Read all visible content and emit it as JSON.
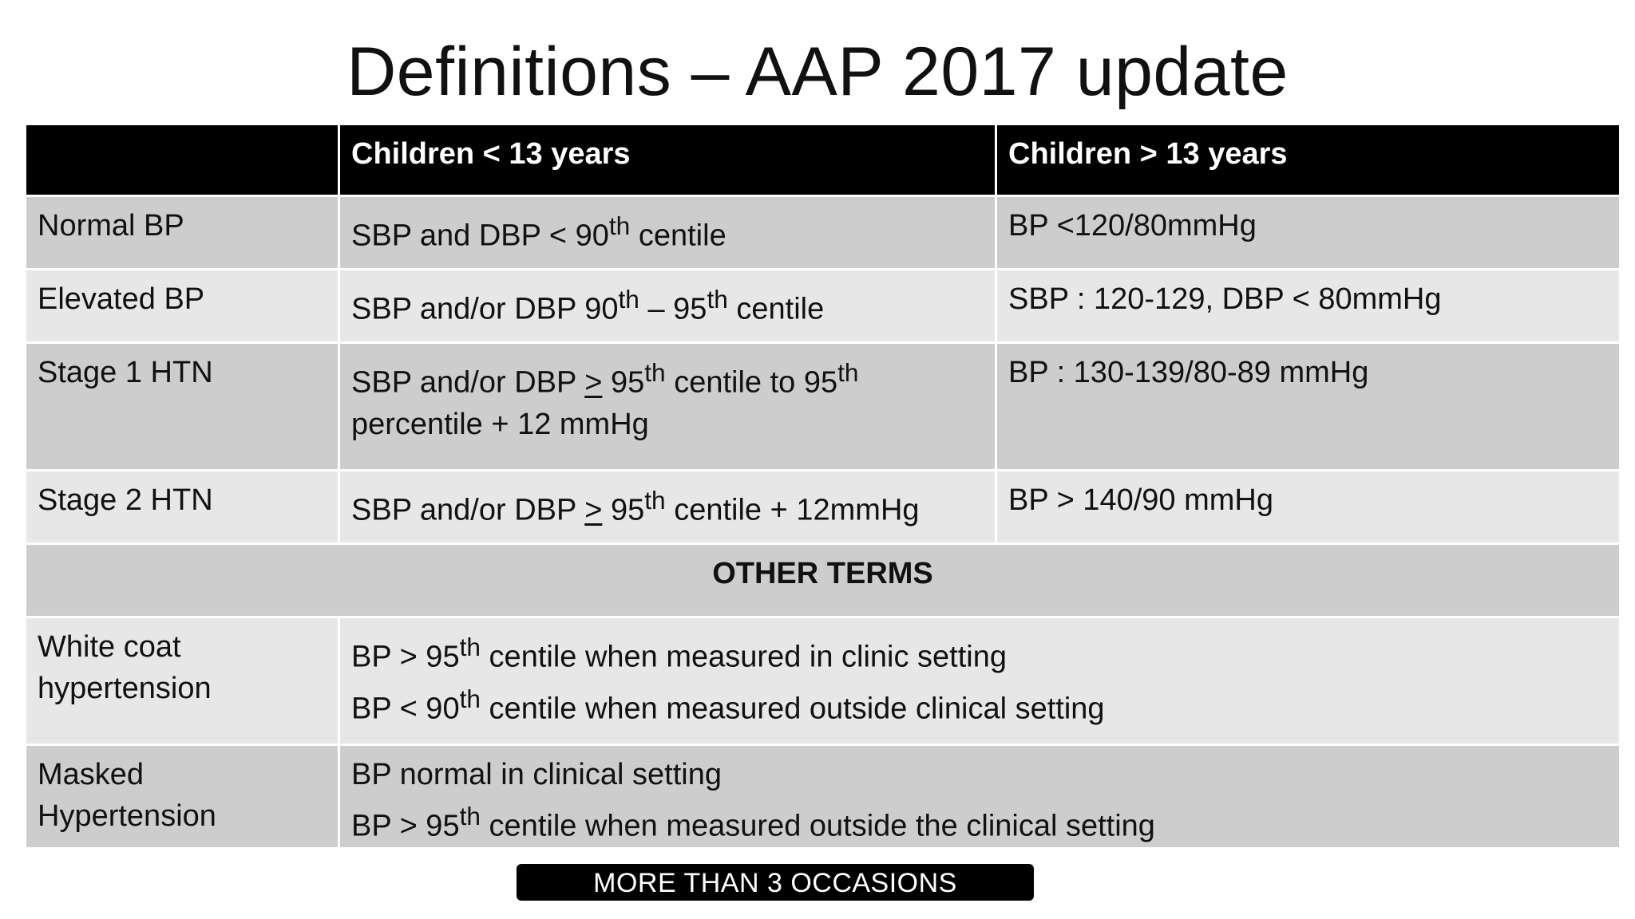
{
  "title": "Definitions – AAP 2017 update",
  "header": {
    "blank": "",
    "col1": "Children < 13 years",
    "col2": "Children > 13 years"
  },
  "rows": [
    {
      "label": "Normal BP",
      "col1": {
        "a": "SBP and DBP < 90",
        "sup1": "th",
        "b": " centile"
      },
      "col2": "BP <120/80mmHg"
    },
    {
      "label": "Elevated BP",
      "col1": {
        "a": "SBP and/or DBP 90",
        "sup1": "th",
        "b": "  – 95",
        "sup2": "th",
        "c": " centile"
      },
      "col2": "SBP : 120-129, DBP < 80mmHg"
    },
    {
      "label": "Stage 1 HTN",
      "col1": {
        "a": "SBP and/or DBP  ",
        "ge": ">",
        "b": "  95",
        "sup1": "th",
        "c": " centile to 95",
        "sup2": "th",
        "d": "percentile + 12 mmHg"
      },
      "col2": "BP : 130-139/80-89 mmHg"
    },
    {
      "label": "Stage 2 HTN",
      "col1": {
        "a": "SBP and/or DBP  ",
        "ge": ">",
        "b": "  95",
        "sup1": "th",
        "c": " centile  + 12mmHg"
      },
      "col2": "BP > 140/90 mmHg"
    }
  ],
  "other_terms": {
    "heading": "OTHER TERMS",
    "white_coat": {
      "label_line1": "White coat",
      "label_line2": "hypertension",
      "line1": {
        "a": "BP > 95",
        "sup": "th",
        "b": " centile when measured in clinic setting"
      },
      "line2": {
        "a": "BP <  90",
        "sup": "th",
        "b": " centile when measured outside  clinical setting"
      }
    },
    "masked": {
      "label_line1": "Masked",
      "label_line2": "Hypertension",
      "line1": "BP normal in clinical setting",
      "line2": {
        "a": "BP > 95",
        "sup": "th",
        "b": " centile when measured outside the clinical setting"
      }
    }
  },
  "banner": "MORE THAN 3 OCCASIONS"
}
